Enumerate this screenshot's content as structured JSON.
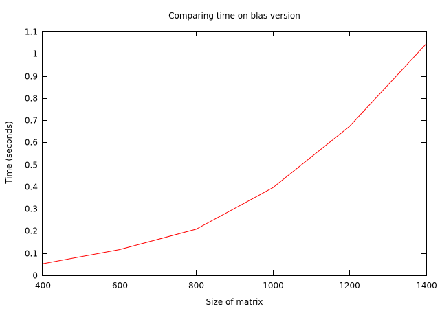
{
  "chart_data": {
    "type": "line",
    "title": "Comparing time on blas version",
    "xlabel": "Size of matrix",
    "ylabel": "Time (seconds)",
    "xlim": [
      400,
      1400
    ],
    "ylim": [
      0,
      1.1
    ],
    "x_ticks": [
      400,
      600,
      800,
      1000,
      1200,
      1400
    ],
    "y_ticks": [
      0,
      0.1,
      0.2,
      0.3,
      0.4,
      0.5,
      0.6,
      0.7,
      0.8,
      0.9,
      1,
      1.1
    ],
    "x_tick_labels": [
      "400",
      "600",
      "800",
      "1000",
      "1200",
      "1400"
    ],
    "y_tick_labels": [
      "0",
      "0.1",
      "0.2",
      "0.3",
      "0.4",
      "0.5",
      "0.6",
      "0.7",
      "0.8",
      "0.9",
      "1",
      "1.1"
    ],
    "grid": false,
    "series": [
      {
        "color": "#ff0000",
        "x": [
          400,
          600,
          800,
          1000,
          1200,
          1400
        ],
        "values": [
          0.052,
          0.116,
          0.208,
          0.395,
          0.672,
          1.045
        ]
      }
    ]
  }
}
